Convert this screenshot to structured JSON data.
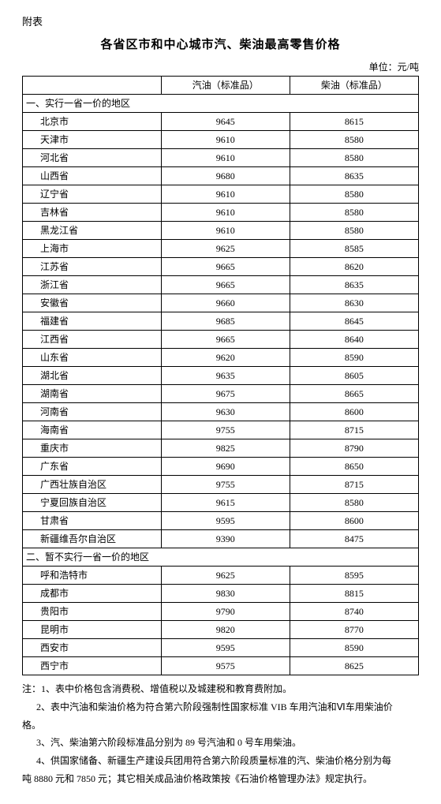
{
  "attachment": "附表",
  "title": "各省区市和中心城市汽、柴油最高零售价格",
  "unit": "单位：元/吨",
  "columns": [
    "",
    "汽油（标准品）",
    "柴油（标准品）"
  ],
  "section1_title": "一、实行一省一价的地区",
  "section1_rows": [
    {
      "region": "北京市",
      "gas": "9645",
      "diesel": "8615"
    },
    {
      "region": "天津市",
      "gas": "9610",
      "diesel": "8580"
    },
    {
      "region": "河北省",
      "gas": "9610",
      "diesel": "8580"
    },
    {
      "region": "山西省",
      "gas": "9680",
      "diesel": "8635"
    },
    {
      "region": "辽宁省",
      "gas": "9610",
      "diesel": "8580"
    },
    {
      "region": "吉林省",
      "gas": "9610",
      "diesel": "8580"
    },
    {
      "region": "黑龙江省",
      "gas": "9610",
      "diesel": "8580"
    },
    {
      "region": "上海市",
      "gas": "9625",
      "diesel": "8585"
    },
    {
      "region": "江苏省",
      "gas": "9665",
      "diesel": "8620"
    },
    {
      "region": "浙江省",
      "gas": "9665",
      "diesel": "8635"
    },
    {
      "region": "安徽省",
      "gas": "9660",
      "diesel": "8630"
    },
    {
      "region": "福建省",
      "gas": "9685",
      "diesel": "8645"
    },
    {
      "region": "江西省",
      "gas": "9665",
      "diesel": "8640"
    },
    {
      "region": "山东省",
      "gas": "9620",
      "diesel": "8590"
    },
    {
      "region": "湖北省",
      "gas": "9635",
      "diesel": "8605"
    },
    {
      "region": "湖南省",
      "gas": "9675",
      "diesel": "8665"
    },
    {
      "region": "河南省",
      "gas": "9630",
      "diesel": "8600"
    },
    {
      "region": "海南省",
      "gas": "9755",
      "diesel": "8715"
    },
    {
      "region": "重庆市",
      "gas": "9825",
      "diesel": "8790"
    },
    {
      "region": "广东省",
      "gas": "9690",
      "diesel": "8650"
    },
    {
      "region": "广西壮族自治区",
      "gas": "9755",
      "diesel": "8715"
    },
    {
      "region": "宁夏回族自治区",
      "gas": "9615",
      "diesel": "8580"
    },
    {
      "region": "甘肃省",
      "gas": "9595",
      "diesel": "8600"
    },
    {
      "region": "新疆维吾尔自治区",
      "gas": "9390",
      "diesel": "8475"
    }
  ],
  "section2_title": "二、暂不实行一省一价的地区",
  "section2_rows": [
    {
      "region": "呼和浩特市",
      "gas": "9625",
      "diesel": "8595"
    },
    {
      "region": "成都市",
      "gas": "9830",
      "diesel": "8815"
    },
    {
      "region": "贵阳市",
      "gas": "9790",
      "diesel": "8740"
    },
    {
      "region": "昆明市",
      "gas": "9820",
      "diesel": "8770"
    },
    {
      "region": "西安市",
      "gas": "9595",
      "diesel": "8590"
    },
    {
      "region": "西宁市",
      "gas": "9575",
      "diesel": "8625"
    }
  ],
  "notes": {
    "n1": "注：1、表中价格包含消费税、增值税以及城建税和教育费附加。",
    "n2a": "2、表中汽油和柴油价格为符合第六阶段强制性国家标准 VIB 车用汽油和Ⅵ车用柴油价",
    "n2b": "格。",
    "n3": "3、汽、柴油第六阶段标准品分别为 89 号汽油和 0 号车用柴油。",
    "n4a": "4、供国家储备、新疆生产建设兵团用符合第六阶段质量标准的汽、柴油价格分别为每",
    "n4b": "吨 8880 元和 7850 元；其它相关成品油价格政策按《石油价格管理办法》规定执行。"
  }
}
